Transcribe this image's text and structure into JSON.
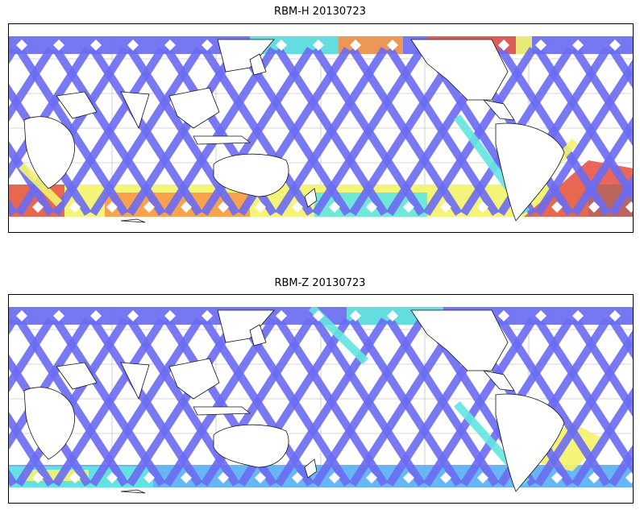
{
  "maps": [
    {
      "title": "RBM-H 20130723",
      "colors": {
        "low": "#6a6cf2",
        "mid": "#5ab0f5",
        "cyan": "#63e6e0",
        "yellow": "#f3f36e",
        "orange": "#f79a4a",
        "red": "#e65a4c",
        "dark": "#b76460"
      }
    },
    {
      "title": "RBM-Z 20130723",
      "colors": {
        "low": "#6a6cf2",
        "mid": "#5ab0f5",
        "cyan": "#63e6e0",
        "yellow": "#f3f36e",
        "orange": "#f79a4a",
        "red": "#e65a4c",
        "dark": "#b76460"
      }
    }
  ]
}
